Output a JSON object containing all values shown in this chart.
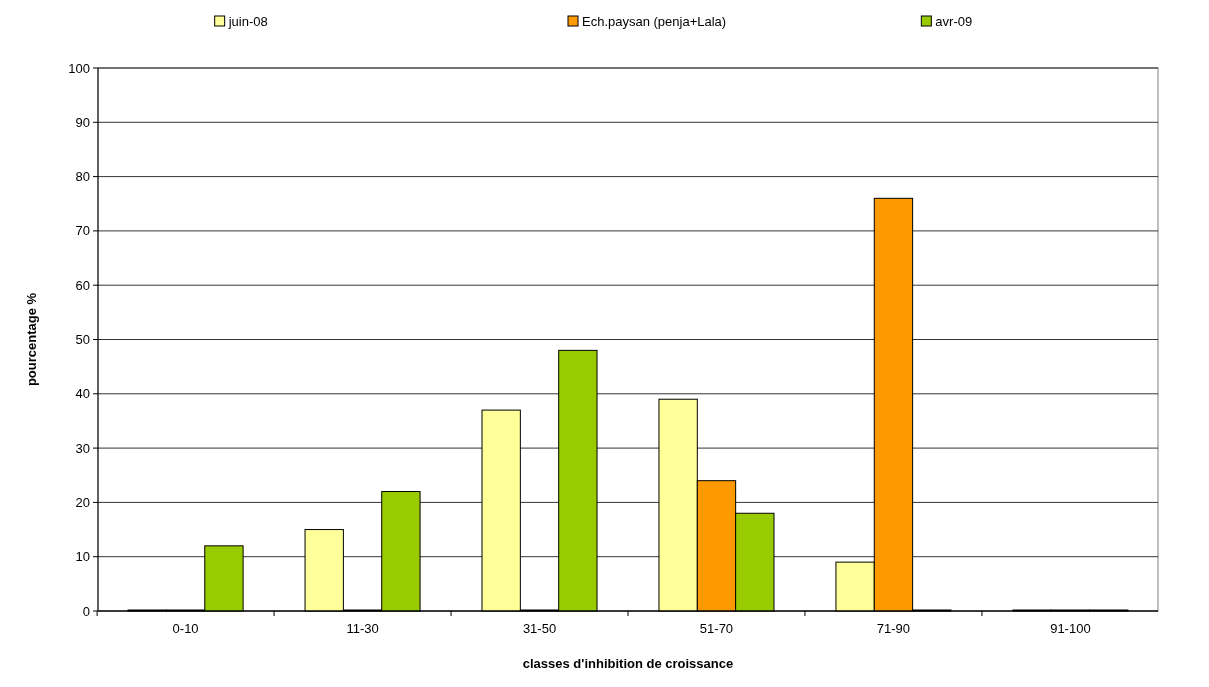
{
  "chart_data": {
    "type": "bar",
    "xlabel": "classes d'inhibition de croissance",
    "ylabel": "pourcentage %",
    "categories": [
      "0-10",
      "11-30",
      "31-50",
      "51-70",
      "71-90",
      "91-100"
    ],
    "series": [
      {
        "name": "juin-08",
        "color": "#ffff99",
        "values": [
          0,
          15,
          37,
          39,
          9,
          0
        ]
      },
      {
        "name": "Ech.paysan (penja+Lala)",
        "color": "#ff9900",
        "values": [
          0,
          0,
          0,
          24,
          76,
          0
        ]
      },
      {
        "name": "avr-09",
        "color": "#99cc00",
        "values": [
          12,
          22,
          48,
          18,
          0,
          0
        ]
      }
    ],
    "ylim": [
      0,
      100
    ],
    "yticks": [
      0,
      10,
      20,
      30,
      40,
      50,
      60,
      70,
      80,
      90,
      100
    ],
    "grid": "y",
    "legend": "top"
  }
}
